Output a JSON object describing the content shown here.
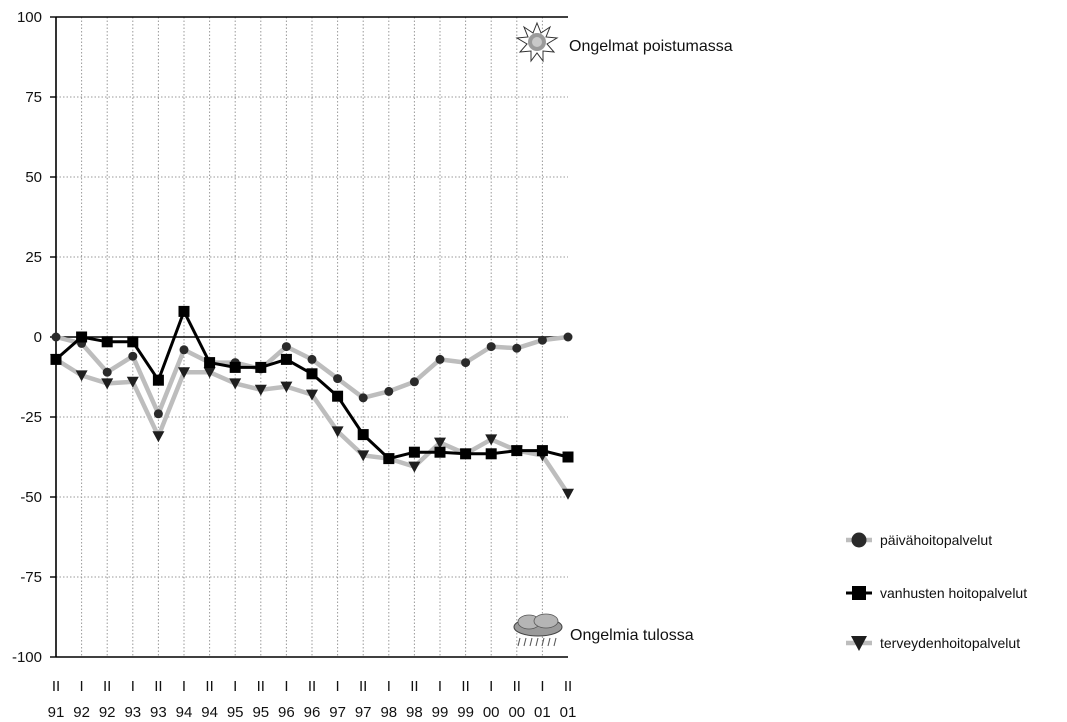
{
  "chart_data": {
    "type": "line",
    "ylim": [
      -100,
      100
    ],
    "yticks": [
      100,
      75,
      50,
      25,
      0,
      -25,
      -50,
      -75,
      -100
    ],
    "grid": true,
    "legend_position": "bottom-right",
    "x_half": [
      "II",
      "I",
      "II",
      "I",
      "II",
      "I",
      "II",
      "I",
      "II",
      "I",
      "II",
      "I",
      "II",
      "I",
      "II",
      "I",
      "II",
      "I",
      "II",
      "I",
      "II"
    ],
    "x_year": [
      "91",
      "92",
      "92",
      "93",
      "93",
      "94",
      "94",
      "95",
      "95",
      "96",
      "96",
      "97",
      "97",
      "98",
      "98",
      "99",
      "99",
      "00",
      "00",
      "01",
      "01"
    ],
    "series": [
      {
        "name": "päivähoitopalvelut",
        "marker": "circle",
        "values": [
          0,
          -2,
          -11,
          -6,
          -24,
          -4,
          -8,
          -8,
          -10,
          -3,
          -7,
          -13,
          -19,
          -17,
          -14,
          -7,
          -8,
          -3,
          -3.5,
          -1,
          0
        ]
      },
      {
        "name": "vanhusten hoitopalvelut",
        "marker": "square",
        "values": [
          -7,
          0,
          -1.5,
          -1.5,
          -13.5,
          8,
          -8,
          -9.5,
          -9.5,
          -7,
          -11.5,
          -18.5,
          -30.5,
          -38,
          -36,
          -36,
          -36.5,
          -36.5,
          -35.5,
          -35.5,
          -37.5
        ]
      },
      {
        "name": "terveydenhoitopalvelut",
        "marker": "triangle",
        "values": [
          -7,
          -12,
          -14.5,
          -14,
          -31,
          -11,
          -11,
          -14.5,
          -16.5,
          -15.5,
          -18,
          -29.5,
          -37,
          -38,
          -40.5,
          -33,
          -36.5,
          -32,
          -35.5,
          -37,
          -49
        ]
      }
    ],
    "annotations": {
      "top": "Ongelmat poistumassa",
      "bottom": "Ongelmia tulossa"
    },
    "colors": {
      "circle_marker": "#2a2a2a",
      "triangle_marker": "#1e1e1e",
      "square_series": "#000000",
      "light_series": "#bdbdbd",
      "grid": "#999999"
    },
    "icons": {
      "top": "sun-icon",
      "bottom": "rain-cloud-icon"
    }
  }
}
